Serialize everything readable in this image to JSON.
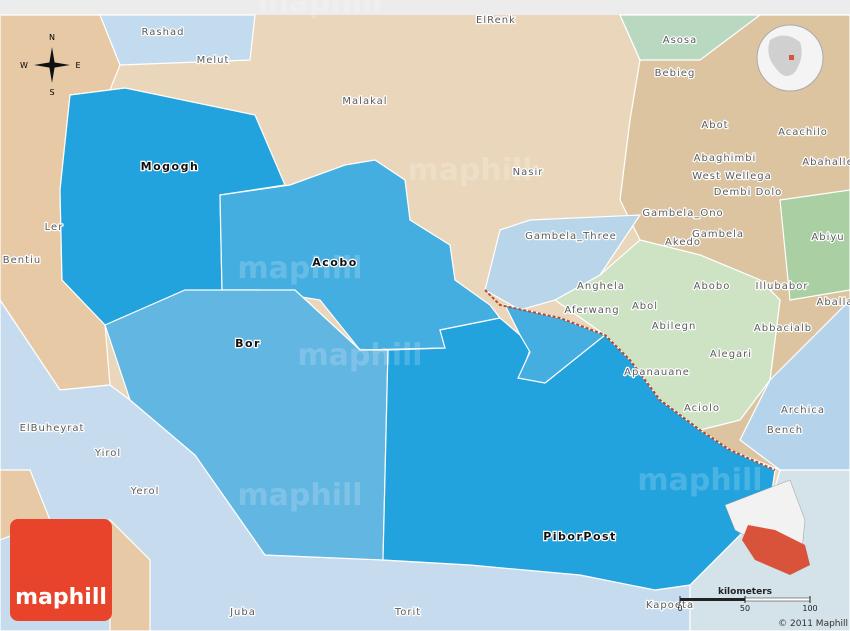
{
  "map": {
    "places": [
      "Rashad",
      "Melut",
      "ElRenk",
      "Malakal",
      "Nasir",
      "Mogogh",
      "Ler",
      "Bentiu",
      "Acobo",
      "Bor",
      "PiborPost",
      "ElBuheyrat",
      "Yirol",
      "Yerol",
      "Juba",
      "Torit",
      "Kapoeta",
      "Asosa",
      "Bebieg",
      "Abot",
      "Acachilo",
      "Abahalle",
      "Abaghimbi",
      "West Wellega",
      "Dembi Dolo",
      "Gambela_Ono",
      "Akedo",
      "Gambela",
      "Abiyu",
      "Gambela_Three",
      "Anghela",
      "Abol",
      "Abobo",
      "Aferwang",
      "Abilegn",
      "Illubabor",
      "Aballa",
      "Abbacialb",
      "Alegari",
      "Apanauane",
      "Aciolo",
      "Archica",
      "Bench"
    ],
    "compass": {
      "north": "N",
      "south": "S",
      "east": "E",
      "west": "W"
    },
    "scale": {
      "unit": "kilometers",
      "ticks": [
        0,
        50,
        100
      ]
    },
    "logo": "maphill",
    "watermark": "maphill",
    "copyright": "© 2011 Maphill"
  }
}
